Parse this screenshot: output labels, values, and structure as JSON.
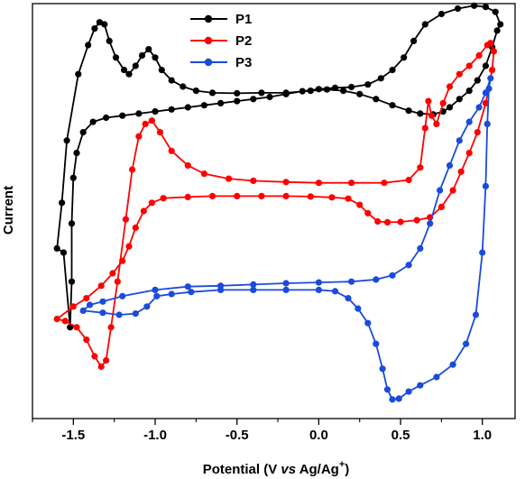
{
  "chart_data": {
    "type": "line",
    "xlabel": "Potential (V vs Ag/Ag+)",
    "xlabel_parts": {
      "pre": "Potential (V ",
      "vs": "vs",
      "mid": " Ag/Ag",
      "sup": "+",
      "post": ")"
    },
    "ylabel": "Current",
    "xlim": [
      -1.75,
      1.2
    ],
    "ylim": [
      0,
      100
    ],
    "xticks": [
      -1.5,
      -1.0,
      -0.5,
      0.0,
      0.5,
      1.0
    ],
    "xtick_labels": [
      "-1.5",
      "-1.0",
      "-0.5",
      "0.0",
      "0.5",
      "1.0"
    ],
    "y_tick_labels_shown": false,
    "legend_position": "top-center",
    "series": [
      {
        "name": "P1",
        "color": "#000000",
        "points": [
          [
            -1.52,
            22.0
          ],
          [
            -1.56,
            40.0
          ],
          [
            -1.6,
            41.0
          ],
          [
            -1.57,
            52.0
          ],
          [
            -1.54,
            67.0
          ],
          [
            -1.47,
            83.0
          ],
          [
            -1.41,
            90.0
          ],
          [
            -1.37,
            94.0
          ],
          [
            -1.34,
            95.5
          ],
          [
            -1.31,
            95.0
          ],
          [
            -1.28,
            91.0
          ],
          [
            -1.24,
            87.0
          ],
          [
            -1.19,
            84.0
          ],
          [
            -1.16,
            83.0
          ],
          [
            -1.12,
            85.0
          ],
          [
            -1.08,
            87.5
          ],
          [
            -1.04,
            89.0
          ],
          [
            -1.0,
            87.0
          ],
          [
            -0.96,
            84.0
          ],
          [
            -0.9,
            81.5
          ],
          [
            -0.83,
            80.0
          ],
          [
            -0.75,
            79.0
          ],
          [
            -0.65,
            78.5
          ],
          [
            -0.5,
            78.4
          ],
          [
            -0.35,
            78.5
          ],
          [
            -0.2,
            78.5
          ],
          [
            -0.05,
            79.0
          ],
          [
            0.05,
            79.3
          ],
          [
            0.15,
            79.0
          ],
          [
            0.25,
            78.2
          ],
          [
            0.35,
            77.0
          ],
          [
            0.45,
            75.5
          ],
          [
            0.55,
            74.2
          ],
          [
            0.62,
            73.5
          ],
          [
            0.7,
            73.3
          ],
          [
            0.76,
            74.0
          ],
          [
            0.8,
            75.0
          ],
          [
            0.86,
            77.0
          ],
          [
            0.92,
            79.0
          ],
          [
            0.97,
            81.5
          ],
          [
            1.02,
            85.0
          ],
          [
            1.06,
            89.5
          ],
          [
            1.09,
            93.5
          ],
          [
            1.11,
            95.0
          ],
          [
            1.08,
            98.0
          ],
          [
            1.02,
            99.2
          ],
          [
            0.95,
            99.5
          ],
          [
            0.85,
            98.8
          ],
          [
            0.75,
            97.5
          ],
          [
            0.65,
            95.0
          ],
          [
            0.58,
            91.0
          ],
          [
            0.52,
            87.0
          ],
          [
            0.45,
            84.0
          ],
          [
            0.38,
            82.0
          ],
          [
            0.3,
            80.5
          ],
          [
            0.2,
            79.9
          ],
          [
            0.1,
            79.7
          ],
          [
            0.0,
            79.4
          ],
          [
            -0.1,
            78.9
          ],
          [
            -0.2,
            78.2
          ],
          [
            -0.3,
            77.5
          ],
          [
            -0.4,
            77.0
          ],
          [
            -0.5,
            76.5
          ],
          [
            -0.6,
            76.0
          ],
          [
            -0.7,
            75.5
          ],
          [
            -0.8,
            75.0
          ],
          [
            -0.9,
            74.5
          ],
          [
            -1.0,
            74.0
          ],
          [
            -1.1,
            73.5
          ],
          [
            -1.2,
            73.0
          ],
          [
            -1.3,
            72.5
          ],
          [
            -1.38,
            71.5
          ],
          [
            -1.44,
            69.0
          ],
          [
            -1.48,
            64.0
          ],
          [
            -1.5,
            58.0
          ],
          [
            -1.51,
            47.0
          ],
          [
            -1.51,
            33.0
          ],
          [
            -1.52,
            22.0
          ]
        ]
      },
      {
        "name": "P2",
        "color": "#ff0000",
        "points": [
          [
            -1.55,
            23.5
          ],
          [
            -1.48,
            22.0
          ],
          [
            -1.42,
            19.0
          ],
          [
            -1.37,
            15.0
          ],
          [
            -1.33,
            12.5
          ],
          [
            -1.3,
            14.0
          ],
          [
            -1.27,
            22.0
          ],
          [
            -1.23,
            33.0
          ],
          [
            -1.18,
            48.0
          ],
          [
            -1.14,
            60.0
          ],
          [
            -1.1,
            68.0
          ],
          [
            -1.06,
            71.0
          ],
          [
            -1.02,
            71.8
          ],
          [
            -0.97,
            69.0
          ],
          [
            -0.9,
            64.5
          ],
          [
            -0.8,
            61.0
          ],
          [
            -0.7,
            59.0
          ],
          [
            -0.55,
            57.8
          ],
          [
            -0.4,
            57.3
          ],
          [
            -0.2,
            57.0
          ],
          [
            0.0,
            56.8
          ],
          [
            0.2,
            56.8
          ],
          [
            0.4,
            56.8
          ],
          [
            0.55,
            57.5
          ],
          [
            0.62,
            60.5
          ],
          [
            0.65,
            70.0
          ],
          [
            0.67,
            76.5
          ],
          [
            0.69,
            73.0
          ],
          [
            0.72,
            71.0
          ],
          [
            0.76,
            76.0
          ],
          [
            0.8,
            80.0
          ],
          [
            0.86,
            83.0
          ],
          [
            0.92,
            85.0
          ],
          [
            0.98,
            87.5
          ],
          [
            1.03,
            90.0
          ],
          [
            1.05,
            90.5
          ],
          [
            1.07,
            88.5
          ],
          [
            1.06,
            84.0
          ],
          [
            1.02,
            76.0
          ],
          [
            0.97,
            69.0
          ],
          [
            0.92,
            64.0
          ],
          [
            0.87,
            59.5
          ],
          [
            0.82,
            55.0
          ],
          [
            0.75,
            51.0
          ],
          [
            0.68,
            48.5
          ],
          [
            0.6,
            47.8
          ],
          [
            0.5,
            47.4
          ],
          [
            0.42,
            47.3
          ],
          [
            0.36,
            47.5
          ],
          [
            0.3,
            49.5
          ],
          [
            0.25,
            51.5
          ],
          [
            0.18,
            53.0
          ],
          [
            0.08,
            53.3
          ],
          [
            -0.05,
            53.5
          ],
          [
            -0.2,
            53.6
          ],
          [
            -0.35,
            53.6
          ],
          [
            -0.5,
            53.6
          ],
          [
            -0.65,
            53.6
          ],
          [
            -0.8,
            53.4
          ],
          [
            -0.95,
            53.1
          ],
          [
            -1.02,
            52.0
          ],
          [
            -1.07,
            50.0
          ],
          [
            -1.12,
            46.0
          ],
          [
            -1.16,
            41.5
          ],
          [
            -1.2,
            38.0
          ],
          [
            -1.26,
            35.0
          ],
          [
            -1.33,
            32.0
          ],
          [
            -1.42,
            29.0
          ],
          [
            -1.5,
            27.0
          ],
          [
            -1.6,
            24.0
          ],
          [
            -1.55,
            23.5
          ]
        ]
      },
      {
        "name": "P3",
        "color": "#1a4bdc",
        "points": [
          [
            -1.44,
            26.0
          ],
          [
            -1.32,
            25.5
          ],
          [
            -1.22,
            25.0
          ],
          [
            -1.12,
            25.3
          ],
          [
            -1.05,
            27.0
          ],
          [
            -0.99,
            29.5
          ],
          [
            -0.9,
            30.0
          ],
          [
            -0.78,
            30.5
          ],
          [
            -0.6,
            31.0
          ],
          [
            -0.4,
            31.0
          ],
          [
            -0.2,
            31.0
          ],
          [
            0.0,
            31.0
          ],
          [
            0.1,
            30.7
          ],
          [
            0.18,
            29.0
          ],
          [
            0.24,
            26.5
          ],
          [
            0.3,
            23.0
          ],
          [
            0.35,
            18.0
          ],
          [
            0.39,
            12.0
          ],
          [
            0.42,
            7.0
          ],
          [
            0.45,
            4.6
          ],
          [
            0.49,
            4.8
          ],
          [
            0.55,
            6.5
          ],
          [
            0.62,
            8.0
          ],
          [
            0.72,
            10.0
          ],
          [
            0.82,
            13.0
          ],
          [
            0.9,
            18.0
          ],
          [
            0.96,
            25.0
          ],
          [
            1.0,
            40.0
          ],
          [
            1.02,
            56.0
          ],
          [
            1.03,
            71.0
          ],
          [
            1.04,
            79.5
          ],
          [
            1.05,
            82.0
          ],
          [
            1.02,
            78.5
          ],
          [
            0.98,
            75.0
          ],
          [
            0.92,
            71.5
          ],
          [
            0.86,
            67.0
          ],
          [
            0.8,
            61.0
          ],
          [
            0.74,
            55.0
          ],
          [
            0.68,
            47.0
          ],
          [
            0.62,
            41.0
          ],
          [
            0.55,
            37.0
          ],
          [
            0.45,
            34.5
          ],
          [
            0.35,
            33.5
          ],
          [
            0.2,
            33.0
          ],
          [
            0.0,
            32.8
          ],
          [
            -0.2,
            32.6
          ],
          [
            -0.4,
            32.3
          ],
          [
            -0.6,
            32.0
          ],
          [
            -0.8,
            31.8
          ],
          [
            -1.0,
            31.0
          ],
          [
            -1.2,
            29.5
          ],
          [
            -1.32,
            28.2
          ],
          [
            -1.4,
            27.4
          ],
          [
            -1.44,
            26.0
          ]
        ]
      }
    ]
  }
}
